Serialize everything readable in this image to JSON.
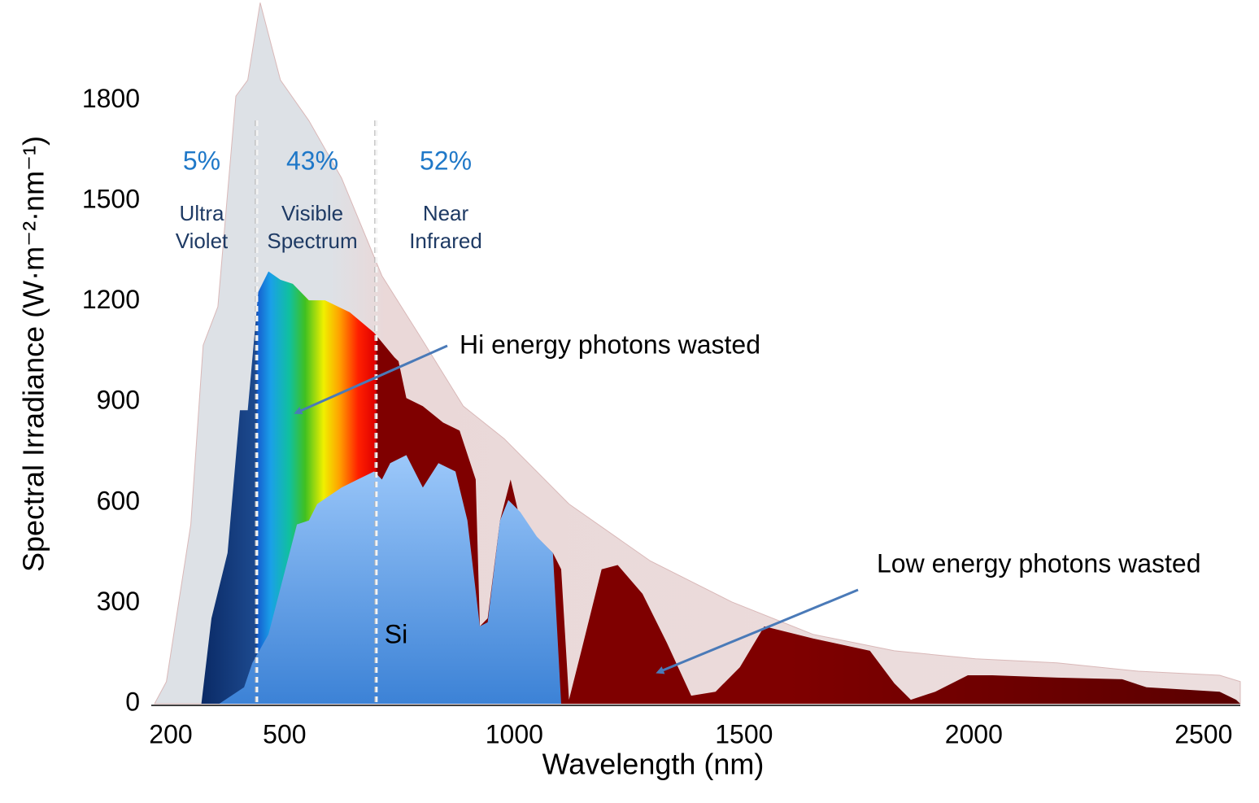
{
  "chart_data": {
    "type": "area",
    "xlabel": "Wavelength (nm)",
    "ylabel": "Spectral Irradiance (W·m⁻²·nm⁻¹)",
    "xlim": [
      210,
      2580
    ],
    "ylim": [
      0,
      2100
    ],
    "xticks": [
      200,
      500,
      1000,
      1500,
      2000,
      2500
    ],
    "yticks": [
      0,
      300,
      600,
      900,
      1200,
      1500,
      1800
    ],
    "grid": false,
    "series": [
      {
        "color": "#dde1e6",
        "x": [
          217,
          243,
          296,
          323,
          355,
          394,
          420,
          447,
          491,
          553,
          624,
          712,
          801,
          889,
          978,
          1119,
          1296,
          1473,
          1650,
          1827,
          2004,
          2181,
          2358,
          2535,
          2580,
          2580
        ],
        "values": [
          0,
          66,
          535,
          1070,
          1185,
          1813,
          1861,
          2092,
          1861,
          1740,
          1569,
          1277,
          1083,
          888,
          791,
          596,
          426,
          304,
          207,
          158,
          134,
          122,
          97,
          85,
          66,
          0
        ]
      },
      {
        "color": "#7f0000",
        "x": [
          319,
          341,
          376,
          403,
          420,
          443,
          465,
          491,
          518,
          553,
          588,
          642,
          695,
          739,
          748,
          765,
          801,
          845,
          881,
          916,
          925,
          942,
          969,
          992,
          1013,
          1084,
          1102,
          1119,
          1146,
          1190,
          1225,
          1279,
          1332,
          1385,
          1438,
          1491,
          1544,
          1650,
          1774,
          1827,
          1863,
          1916,
          1987,
          2040,
          2181,
          2323,
          2376,
          2535,
          2571,
          2580
        ],
        "values": [
          0,
          255,
          450,
          876,
          876,
          1229,
          1290,
          1265,
          1253,
          1204,
          1204,
          1168,
          1107,
          1034,
          1022,
          912,
          888,
          839,
          815,
          669,
          231,
          255,
          547,
          669,
          547,
          450,
          401,
          12,
          158,
          401,
          414,
          328,
          182,
          24,
          36,
          109,
          231,
          195,
          158,
          61,
          12,
          36,
          85,
          85,
          78,
          73,
          49,
          36,
          12,
          0
        ]
      },
      {
        "color": "#5d9ee8",
        "x": [
          358,
          412,
          430,
          465,
          527,
          553,
          571,
          624,
          659,
          695,
          712,
          730,
          765,
          801,
          835,
          872,
          898,
          925,
          942,
          969,
          987,
          1013,
          1049,
          1084,
          1102
        ],
        "values": [
          0,
          49,
          122,
          207,
          535,
          547,
          596,
          645,
          669,
          693,
          669,
          718,
          742,
          645,
          718,
          693,
          547,
          231,
          243,
          547,
          608,
          572,
          499,
          450,
          0
        ]
      }
    ],
    "boundaries": [
      440,
      700
    ],
    "regions": [
      {
        "percent": "5%",
        "lines": [
          "Ultra",
          "Violet"
        ]
      },
      {
        "percent": "43%",
        "lines": [
          "Visible",
          "Spectrum"
        ]
      },
      {
        "percent": "52%",
        "lines": [
          "Near",
          "Infrared"
        ]
      }
    ],
    "annotations": [
      "Hi energy photons wasted",
      "Low energy photons wasted",
      "Si"
    ]
  }
}
